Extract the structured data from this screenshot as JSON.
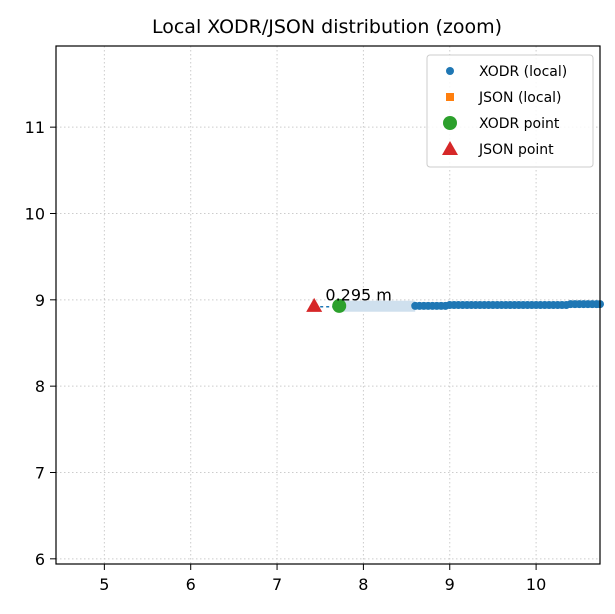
{
  "chart_data": {
    "type": "scatter",
    "title": "Local XODR/JSON distribution (zoom)",
    "xlim": [
      4.44,
      10.74
    ],
    "ylim": [
      5.94,
      11.94
    ],
    "xticks": [
      5,
      6,
      7,
      8,
      9,
      10
    ],
    "yticks": [
      6,
      7,
      8,
      9,
      10,
      11
    ],
    "grid": true,
    "legend_position": "top-right",
    "colors": {
      "xodr": "#1f77b4",
      "json": "#ff7f0e",
      "xodr_point": "#2ca02c",
      "json_point": "#d62728",
      "link_band": "#cfe0ee"
    },
    "series": [
      {
        "name": "XODR (local)",
        "marker": "circle",
        "points": [
          [
            8.6,
            8.93
          ],
          [
            8.65,
            8.93
          ],
          [
            8.7,
            8.93
          ],
          [
            8.75,
            8.93
          ],
          [
            8.8,
            8.93
          ],
          [
            8.85,
            8.93
          ],
          [
            8.9,
            8.93
          ],
          [
            8.95,
            8.93
          ],
          [
            9.0,
            8.94
          ],
          [
            9.05,
            8.94
          ],
          [
            9.1,
            8.94
          ],
          [
            9.15,
            8.94
          ],
          [
            9.2,
            8.94
          ],
          [
            9.25,
            8.94
          ],
          [
            9.3,
            8.94
          ],
          [
            9.35,
            8.94
          ],
          [
            9.4,
            8.94
          ],
          [
            9.45,
            8.94
          ],
          [
            9.5,
            8.94
          ],
          [
            9.55,
            8.94
          ],
          [
            9.6,
            8.94
          ],
          [
            9.65,
            8.94
          ],
          [
            9.7,
            8.94
          ],
          [
            9.75,
            8.94
          ],
          [
            9.8,
            8.94
          ],
          [
            9.85,
            8.94
          ],
          [
            9.9,
            8.94
          ],
          [
            9.95,
            8.94
          ],
          [
            10.0,
            8.94
          ],
          [
            10.05,
            8.94
          ],
          [
            10.1,
            8.94
          ],
          [
            10.15,
            8.94
          ],
          [
            10.2,
            8.94
          ],
          [
            10.25,
            8.94
          ],
          [
            10.3,
            8.94
          ],
          [
            10.35,
            8.94
          ],
          [
            10.4,
            8.95
          ],
          [
            10.45,
            8.95
          ],
          [
            10.5,
            8.95
          ],
          [
            10.55,
            8.95
          ],
          [
            10.6,
            8.95
          ],
          [
            10.65,
            8.95
          ],
          [
            10.7,
            8.95
          ],
          [
            10.74,
            8.95
          ]
        ]
      },
      {
        "name": "JSON (local)",
        "marker": "square",
        "points": []
      },
      {
        "name": "XODR point",
        "marker": "circle-large",
        "points": [
          [
            7.72,
            8.93
          ]
        ]
      },
      {
        "name": "JSON point",
        "marker": "triangle",
        "points": [
          [
            7.43,
            8.93
          ]
        ]
      }
    ],
    "link_band": {
      "x": [
        7.72,
        8.6
      ],
      "y": 8.92
    },
    "annotation": {
      "text": "0.295 m",
      "x": 7.56,
      "y": 8.99
    }
  }
}
